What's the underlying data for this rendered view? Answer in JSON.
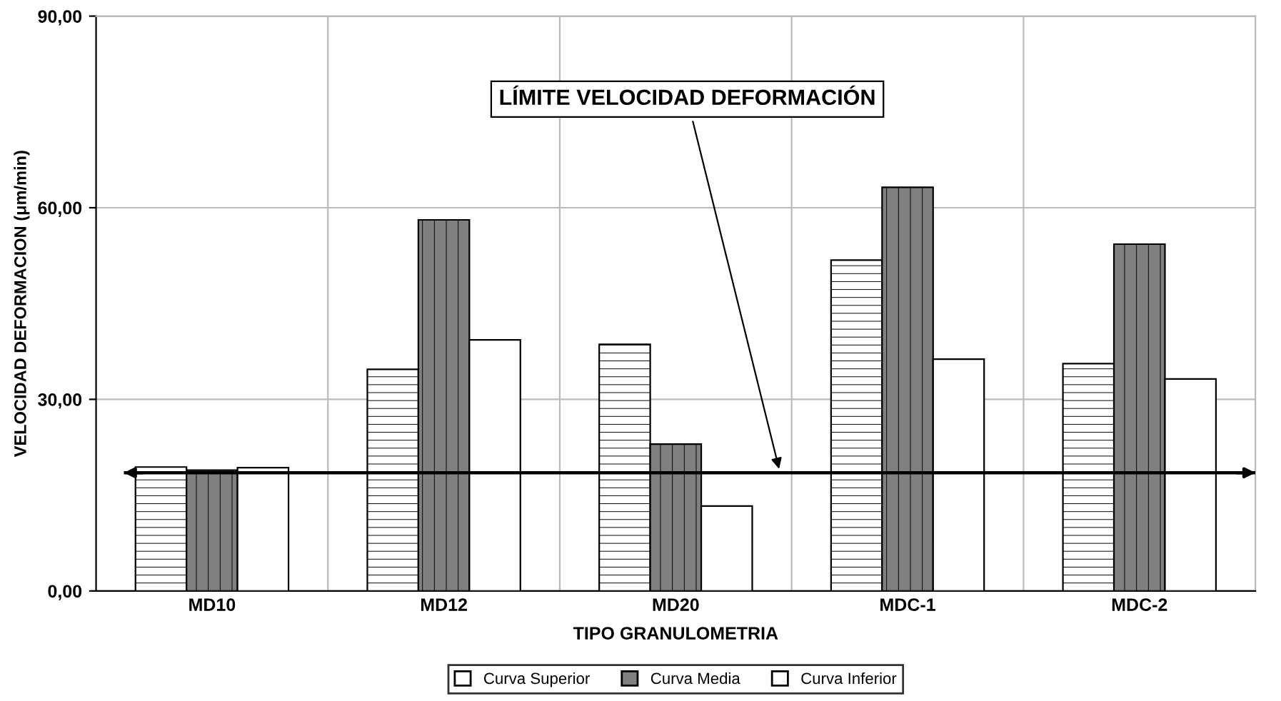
{
  "chart_data": {
    "type": "bar",
    "xlabel": "TIPO GRANULOMETRIA",
    "ylabel": "VELOCIDAD DEFORMACION (μm/min)",
    "categories": [
      "MD10",
      "MD12",
      "MD20",
      "MDC-1",
      "MDC-2"
    ],
    "series": [
      {
        "name": "Curva Superior",
        "color": "#ffffff",
        "values": [
          19.4,
          34.7,
          38.6,
          51.8,
          35.6
        ]
      },
      {
        "name": "Curva Media",
        "color": "#808080",
        "values": [
          18.9,
          58.1,
          23.0,
          63.2,
          54.3
        ]
      },
      {
        "name": "Curva Inferior",
        "color": "#ffffff",
        "values": [
          19.3,
          39.3,
          13.3,
          36.3,
          33.2
        ]
      }
    ],
    "ylim": [
      0,
      90
    ],
    "yticks": [
      {
        "value": 0,
        "label": "0,00"
      },
      {
        "value": 30,
        "label": "30,00"
      },
      {
        "value": 60,
        "label": "60,00"
      },
      {
        "value": 90,
        "label": "90,00"
      }
    ],
    "ref_lines": [
      {
        "axis": "y",
        "value": 18.5,
        "label": "LÍMITE VELOCIDAD DEFORMACIÓN",
        "color": "#000000"
      }
    ],
    "grid": true,
    "legend": "bottom"
  }
}
